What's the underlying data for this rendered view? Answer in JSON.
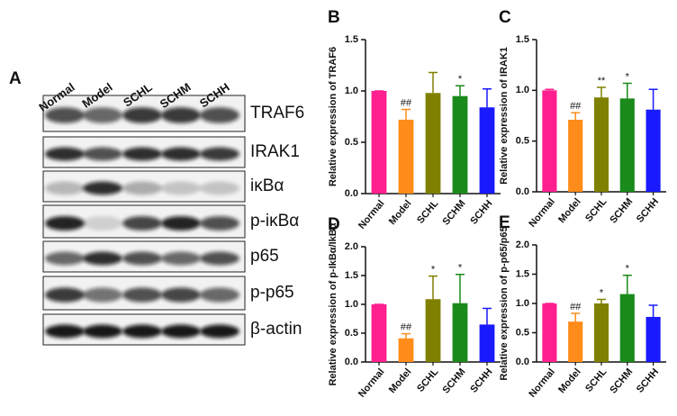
{
  "blot": {
    "label": "A",
    "lanes": [
      "Normal",
      "Model",
      "SCHL",
      "SCHM",
      "SCHH"
    ],
    "proteins": [
      "TRAF6",
      "IRAK1",
      "iκBα",
      "p-iκBα",
      "p65",
      "p-p65",
      "β-actin"
    ]
  },
  "chart_data": [
    {
      "type": "bar",
      "label": "B",
      "y_label": "Relative expression of TRAF6",
      "categories": [
        "Normal",
        "Model",
        "SCHL",
        "SCHM",
        "SCHH"
      ],
      "values": [
        1.0,
        0.72,
        0.98,
        0.95,
        0.84
      ],
      "errors": [
        0,
        0.1,
        0.2,
        0.1,
        0.18
      ],
      "annotations": [
        null,
        "##",
        null,
        "*",
        null
      ],
      "colors": [
        "#ff1f8e",
        "#ff8c1a",
        "#808000",
        "#1a8a1a",
        "#1a1aff"
      ],
      "ylim": [
        0,
        1.5
      ],
      "yticks": [
        {
          "value": 0,
          "label": "0.0"
        },
        0.5,
        {
          "value": 1,
          "label": "1.0"
        },
        1.5
      ]
    },
    {
      "type": "bar",
      "label": "C",
      "y_label": "Relative expression of IRAK1",
      "categories": [
        "Normal",
        "Model",
        "SCHL",
        "SCHM",
        "SCHH"
      ],
      "values": [
        1.0,
        0.71,
        0.93,
        0.92,
        0.81
      ],
      "errors": [
        0.01,
        0.07,
        0.1,
        0.15,
        0.2
      ],
      "annotations": [
        null,
        "##",
        "**",
        "*",
        null
      ],
      "colors": [
        "#ff1f8e",
        "#ff8c1a",
        "#808000",
        "#1a8a1a",
        "#1a1aff"
      ],
      "ylim": [
        0,
        1.5
      ],
      "yticks": [
        {
          "value": 0,
          "label": "0.0"
        },
        0.5,
        {
          "value": 1,
          "label": "1.0"
        },
        1.5
      ]
    },
    {
      "type": "bar",
      "label": "D",
      "y_label": "Relative expression of p-IkBα/IkBα",
      "categories": [
        "Normal",
        "Model",
        "SCHL",
        "SCHM",
        "SCHH"
      ],
      "values": [
        1.0,
        0.41,
        1.09,
        1.02,
        0.65
      ],
      "errors": [
        0,
        0.08,
        0.4,
        0.5,
        0.28
      ],
      "annotations": [
        null,
        "##",
        "*",
        "*",
        null
      ],
      "colors": [
        "#ff1f8e",
        "#ff8c1a",
        "#808000",
        "#1a8a1a",
        "#1a1aff"
      ],
      "ylim": [
        0,
        2
      ],
      "yticks": [
        {
          "value": 0,
          "label": "0.0"
        },
        0.5,
        {
          "value": 1,
          "label": "1.0"
        },
        1.5,
        {
          "value": 2,
          "label": "2.0"
        }
      ]
    },
    {
      "type": "bar",
      "label": "E",
      "y_label": "Relative expression of p-p65/p65",
      "categories": [
        "Normal",
        "Model",
        "SCHL",
        "SCHM",
        "SCHH"
      ],
      "values": [
        1.0,
        0.69,
        1.0,
        1.16,
        0.77
      ],
      "errors": [
        0,
        0.14,
        0.07,
        0.32,
        0.2
      ],
      "annotations": [
        null,
        "##",
        "*",
        "*",
        null
      ],
      "colors": [
        "#ff1f8e",
        "#ff8c1a",
        "#808000",
        "#1a8a1a",
        "#1a1aff"
      ],
      "ylim": [
        0,
        2
      ],
      "yticks": [
        {
          "value": 0,
          "label": "0.0"
        },
        0.5,
        {
          "value": 1,
          "label": "1.0"
        },
        1.5,
        {
          "value": 2,
          "label": "2.0"
        }
      ]
    }
  ]
}
